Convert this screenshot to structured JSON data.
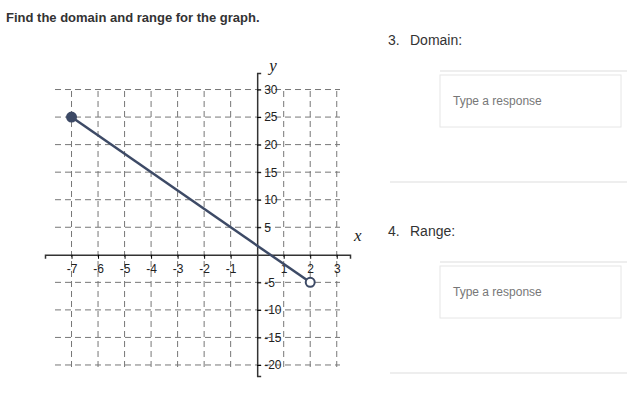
{
  "page": {
    "title": "Find the domain and range for the graph.",
    "questions": [
      {
        "number": "3.",
        "label": "Domain:",
        "placeholder": "Type a response"
      },
      {
        "number": "4.",
        "label": "Range:",
        "placeholder": "Type a response"
      }
    ]
  },
  "chart_data": {
    "type": "line",
    "x_label": "x",
    "y_label": "y",
    "x": [
      -7,
      2
    ],
    "series": [
      {
        "values": [
          25,
          -5
        ],
        "color": "#3d4a66",
        "marker": "closed-open",
        "line_style": "solid"
      }
    ],
    "xlim": [
      -8,
      3.5
    ],
    "ylim": [
      -22,
      33
    ],
    "xticks": [
      -7,
      -6,
      -5,
      -4,
      -3,
      -2,
      -1,
      1,
      2,
      3
    ],
    "yticks": [
      -20,
      -15,
      -10,
      -5,
      5,
      10,
      15,
      20,
      25,
      30
    ],
    "grid": true
  }
}
